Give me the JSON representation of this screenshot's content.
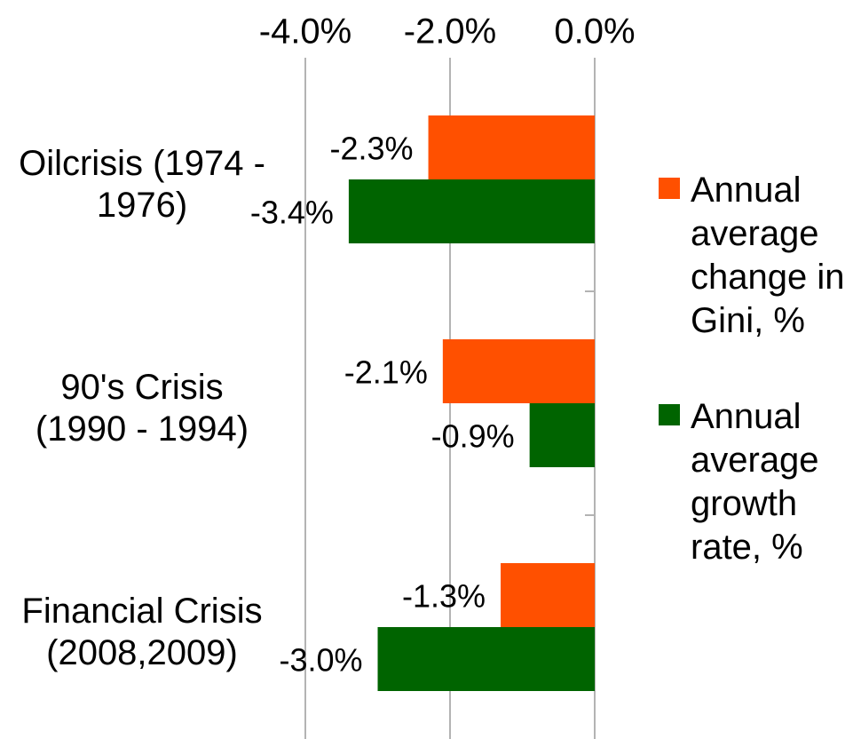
{
  "chart_data": {
    "type": "bar",
    "orientation": "horizontal",
    "categories": [
      "Oilcrisis (1974 - 1976)",
      "90's Crisis (1990 - 1994)",
      "Financial Crisis (2008,2009)"
    ],
    "series": [
      {
        "name": "Annual average change in Gini, %",
        "color": "#ff5000",
        "values": [
          -2.3,
          -2.1,
          -1.3
        ],
        "value_labels": [
          "-2.3%",
          "-2.1%",
          "-1.3%"
        ]
      },
      {
        "name": "Annual average growth rate, %",
        "color": "#006400",
        "values": [
          -3.4,
          -0.9,
          -3.0
        ],
        "value_labels": [
          "-3.4%",
          "-0.9%",
          "-3.0%"
        ]
      }
    ],
    "xlim": [
      -4,
      0
    ],
    "xticks": [
      {
        "value": -4,
        "label": "-4.0%"
      },
      {
        "value": -2,
        "label": "-2.0%"
      },
      {
        "value": 0,
        "label": "0.0%"
      }
    ],
    "grid": true,
    "legend": "right"
  }
}
